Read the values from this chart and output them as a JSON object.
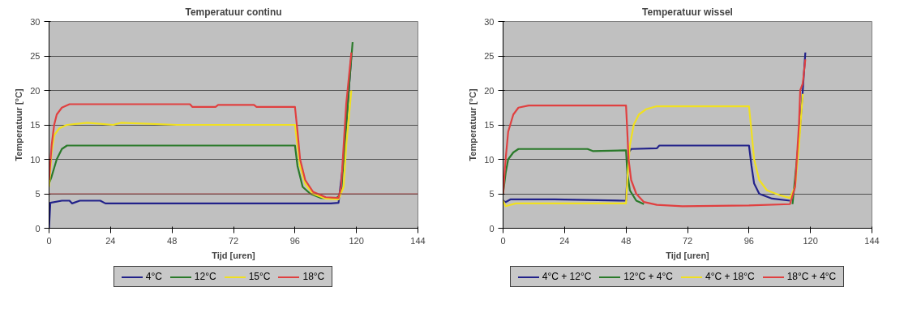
{
  "chart_data": [
    {
      "type": "line",
      "title": "Temperatuur continu",
      "xlabel": "Tijd [uren]",
      "ylabel": "Temperatuur [°C]",
      "xlim": [
        0,
        144
      ],
      "ylim": [
        0,
        30
      ],
      "xticks": [
        0,
        24,
        48,
        72,
        96,
        120,
        144
      ],
      "yticks": [
        0,
        5,
        10,
        15,
        20,
        25,
        30
      ],
      "grid": "y",
      "legend": "bottom",
      "marker": "none",
      "line_style": "solid",
      "ref_lines": [
        {
          "axis": "y",
          "value": 5,
          "color": "#a04848"
        }
      ],
      "series": [
        {
          "name": "4°C",
          "color": "#22228a",
          "x": [
            0,
            0.5,
            5,
            8,
            9,
            12,
            20,
            22,
            50,
            96,
            110,
            113,
            115,
            117,
            118
          ],
          "values": [
            0,
            3.7,
            4,
            4,
            3.6,
            4,
            4,
            3.6,
            3.6,
            3.6,
            3.6,
            3.7,
            10,
            20,
            25
          ]
        },
        {
          "name": "12°C",
          "color": "#2a7a2a",
          "x": [
            0,
            1,
            3,
            5,
            7,
            96,
            97,
            99,
            102,
            106,
            112,
            114,
            116,
            117,
            118.5
          ],
          "values": [
            6.5,
            7.5,
            10,
            11.5,
            12,
            12,
            9,
            6,
            5,
            4.4,
            4.3,
            5,
            15,
            20,
            27
          ]
        },
        {
          "name": "15°C",
          "color": "#f0e020",
          "x": [
            0,
            1,
            2,
            4,
            7,
            15,
            25,
            28,
            50,
            96,
            97,
            98,
            100,
            103,
            108,
            113,
            115,
            116,
            118
          ],
          "values": [
            6,
            11,
            13.5,
            14.5,
            15,
            15.3,
            15,
            15.3,
            15,
            15,
            12,
            9,
            6.5,
            5,
            4.3,
            4.2,
            6,
            12,
            20
          ]
        },
        {
          "name": "18°C",
          "color": "#e04040",
          "x": [
            0,
            1,
            2,
            3,
            5,
            8,
            55,
            56,
            65,
            66,
            80,
            81,
            96,
            97,
            98,
            100,
            103,
            108,
            113,
            114,
            115,
            116,
            118
          ],
          "values": [
            7,
            12,
            15,
            16.5,
            17.5,
            18,
            18,
            17.6,
            17.6,
            17.9,
            17.9,
            17.6,
            17.6,
            14,
            10,
            7,
            5.3,
            4.5,
            4.4,
            6,
            12,
            18,
            25.5
          ]
        }
      ]
    },
    {
      "type": "line",
      "title": "Temperatuur wissel",
      "xlabel": "Tijd [uren]",
      "ylabel": "Temperatuur [°C]",
      "xlim": [
        0,
        144
      ],
      "ylim": [
        0,
        30
      ],
      "xticks": [
        0,
        24,
        48,
        72,
        96,
        120,
        144
      ],
      "yticks": [
        0,
        5,
        10,
        15,
        20,
        25,
        30
      ],
      "grid": "y",
      "legend": "bottom",
      "marker": "none",
      "line_style": "solid",
      "series": [
        {
          "name": "4°C + 12°C",
          "color": "#22228a",
          "x": [
            0,
            1,
            3,
            20,
            48,
            49,
            50,
            60,
            61,
            96,
            97,
            98,
            100,
            105,
            112,
            114,
            116,
            117,
            118
          ],
          "values": [
            4,
            3.8,
            4.2,
            4.2,
            4,
            11,
            11.5,
            11.6,
            12,
            12,
            9,
            6.5,
            5,
            4.3,
            4,
            null,
            15,
            20,
            25.5
          ]
        },
        {
          "name": "12°C + 4°C",
          "color": "#2a7a2a",
          "x": [
            0,
            1,
            2,
            4,
            6,
            33,
            35,
            48,
            48.5,
            49.5,
            52,
            55,
            96,
            113,
            116
          ],
          "values": [
            5,
            8,
            10,
            11,
            11.5,
            11.5,
            11.2,
            11.3,
            8,
            5.5,
            4,
            3.5,
            null,
            3.5,
            15
          ]
        },
        {
          "name": "4°C + 18°C",
          "color": "#f0e020",
          "x": [
            0,
            1,
            5,
            48,
            48.5,
            49.5,
            51,
            53,
            56,
            60,
            96,
            97,
            98,
            100,
            103,
            108,
            112,
            114,
            115.5,
            117
          ],
          "values": [
            4,
            3.2,
            3.6,
            3.6,
            7,
            12,
            15,
            16.5,
            17.3,
            17.7,
            17.7,
            14,
            10,
            7,
            5.5,
            4.8,
            4.4,
            6,
            12,
            19.5
          ]
        },
        {
          "name": "18°C + 4°C",
          "color": "#e04040",
          "x": [
            0,
            1,
            2,
            4,
            6,
            10,
            48,
            48.5,
            49,
            50,
            52,
            55,
            60,
            70,
            96,
            112,
            114,
            115.5,
            116,
            117,
            118
          ],
          "values": [
            5,
            10,
            14,
            16.5,
            17.5,
            17.8,
            17.8,
            14,
            10,
            7,
            5,
            3.8,
            3.4,
            3.2,
            3.3,
            3.5,
            6,
            15,
            20,
            21,
            24.5
          ]
        }
      ]
    }
  ]
}
